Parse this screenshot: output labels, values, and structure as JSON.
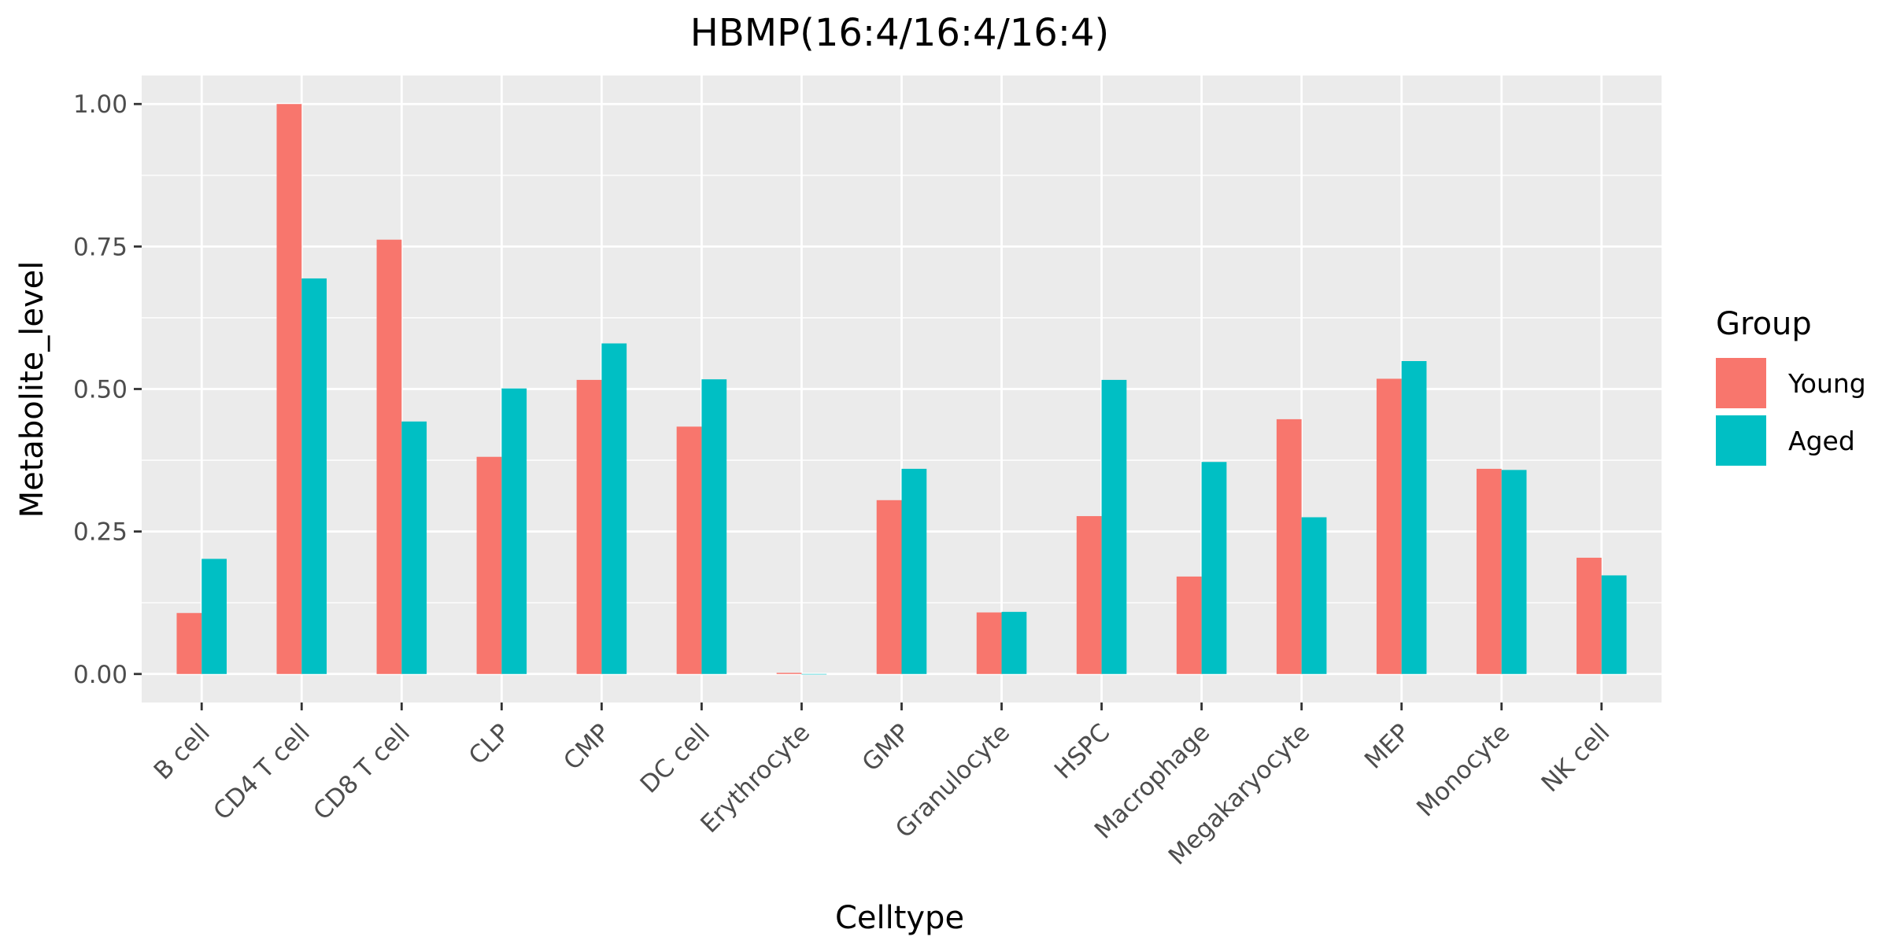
{
  "chart_data": {
    "type": "bar",
    "title": "HBMP(16:4/16:4/16:4)",
    "xlabel": "Celltype",
    "ylabel": "Metabolite_level",
    "ylim": [
      -0.05,
      1.05
    ],
    "yticks": [
      0,
      0.25,
      0.5,
      0.75,
      1.0
    ],
    "ytick_labels": [
      "0.00",
      "0.25",
      "0.50",
      "0.75",
      "1.00"
    ],
    "grid": true,
    "legend": {
      "title": "Group",
      "position": "right"
    },
    "categories": [
      "B cell",
      "CD4 T cell",
      "CD8 T cell",
      "CLP",
      "CMP",
      "DC cell",
      "Erythrocyte",
      "GMP",
      "Granulocyte",
      "HSPC",
      "Macrophage",
      "Megakaryocyte",
      "MEP",
      "Monocyte",
      "NK cell"
    ],
    "series": [
      {
        "name": "Young",
        "color": "#F8766D",
        "values": [
          0.107,
          1.0,
          0.762,
          0.381,
          0.516,
          0.434,
          0.002,
          0.305,
          0.108,
          0.277,
          0.171,
          0.447,
          0.518,
          0.36,
          0.204
        ]
      },
      {
        "name": "Aged",
        "color": "#00BFC4",
        "values": [
          0.202,
          0.694,
          0.443,
          0.501,
          0.58,
          0.517,
          0.0,
          0.36,
          0.109,
          0.516,
          0.372,
          0.275,
          0.549,
          0.358,
          0.173
        ]
      }
    ]
  }
}
